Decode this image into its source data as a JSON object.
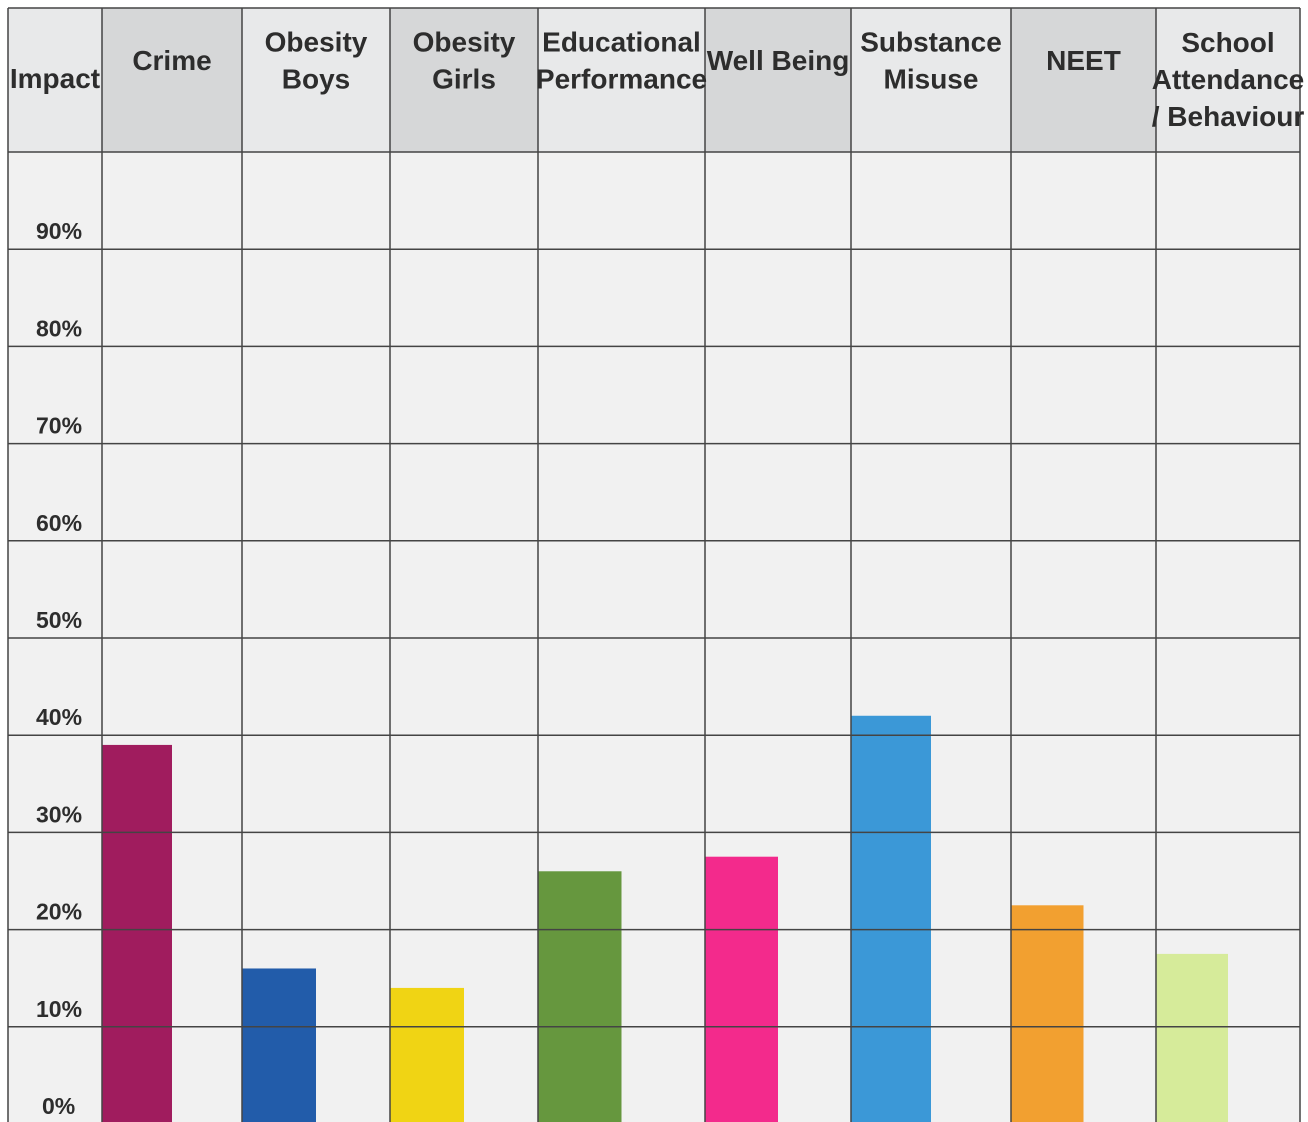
{
  "chart_data": {
    "type": "bar",
    "row_header": "Impact",
    "categories": [
      "Crime",
      "Obesity\nBoys",
      "Obesity\nGirls",
      "Educational\nPerformance",
      "Well Being",
      "Substance\nMisuse",
      "NEET",
      "School\nAttendance\n/ Behaviour"
    ],
    "values": [
      39,
      16,
      14,
      26,
      27.5,
      42,
      22.5,
      17.5
    ],
    "ylim": [
      0,
      100
    ],
    "yticks": [
      "90%",
      "80%",
      "70%",
      "60%",
      "50%",
      "40%",
      "30%",
      "20%",
      "10%",
      "0%"
    ],
    "grid": true,
    "colors": [
      "#a01c5e",
      "#225caa",
      "#f0d414",
      "#66973e",
      "#f32a8c",
      "#3b98d7",
      "#f2a030",
      "#d6eb9a"
    ],
    "header_shading": [
      "#e8e9ea",
      "#d6d7d8",
      "#e8e9ea",
      "#d6d7d8",
      "#e8e9ea",
      "#d6d7d8",
      "#e8e9ea",
      "#d6d7d8",
      "#e8e9ea"
    ]
  }
}
